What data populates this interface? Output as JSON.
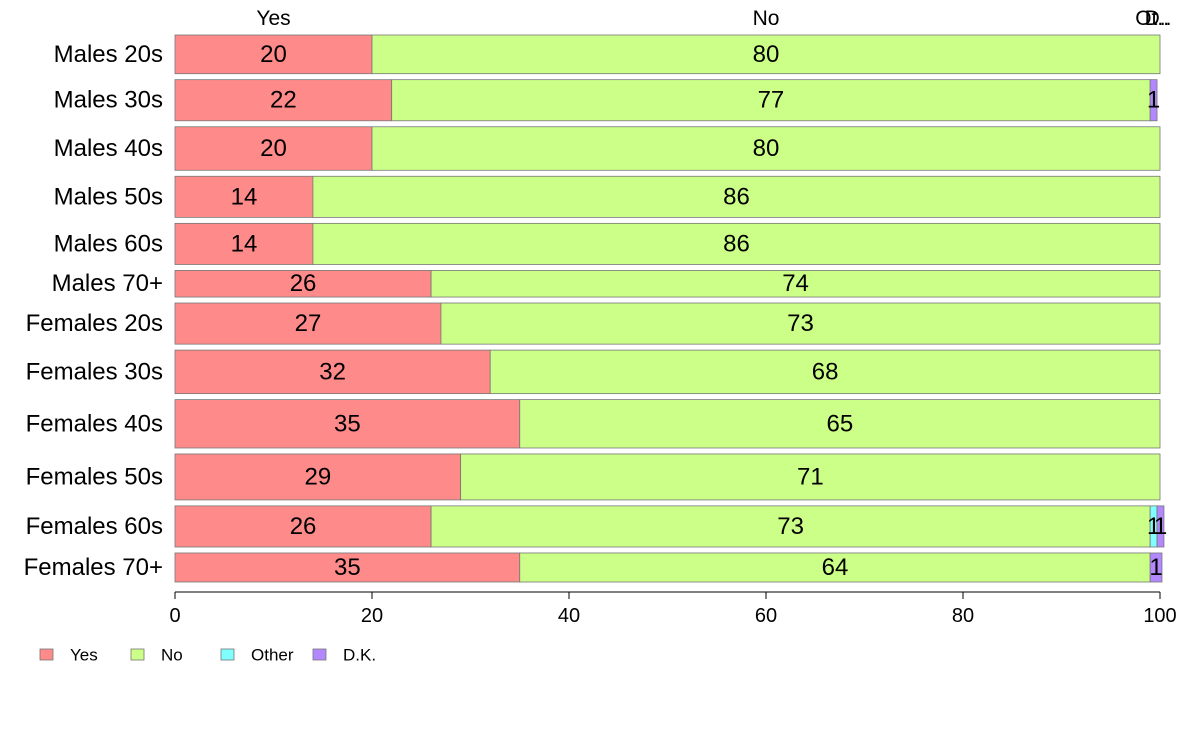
{
  "chart_data": {
    "type": "bar",
    "orientation": "horizontal",
    "stacked": true,
    "categories": [
      "Males 20s",
      "Males 30s",
      "Males 40s",
      "Males 50s",
      "Males 60s",
      "Males 70+",
      "Females 20s",
      "Females 30s",
      "Females 40s",
      "Females 50s",
      "Females 60s",
      "Females 70+"
    ],
    "bar_weights": [
      0.8,
      0.85,
      0.9,
      0.85,
      0.85,
      0.55,
      0.85,
      0.9,
      1.0,
      0.95,
      0.85,
      0.6
    ],
    "series": [
      {
        "name": "Yes",
        "color": "#ff8a8a",
        "values": [
          20,
          22,
          20,
          14,
          14,
          26,
          27,
          32,
          35,
          29,
          26,
          35
        ],
        "labels": [
          "20",
          "22",
          "20",
          "14",
          "14",
          "26",
          "27",
          "32",
          "35",
          "29",
          "26",
          "35"
        ]
      },
      {
        "name": "No",
        "color": "#ccff88",
        "values": [
          80,
          77,
          80,
          86,
          86,
          74,
          73,
          68,
          65,
          71,
          73,
          64
        ],
        "labels": [
          "80",
          "77",
          "80",
          "86",
          "86",
          "74",
          "73",
          "68",
          "65",
          "71",
          "73",
          "64"
        ]
      },
      {
        "name": "Other",
        "color": "#80ffff",
        "values": [
          0,
          0,
          0,
          0,
          0,
          0,
          0,
          0,
          0,
          0,
          0.7,
          0
        ],
        "labels": [
          "",
          "",
          "",
          "",
          "",
          "",
          "",
          "",
          "",
          "",
          "1",
          ""
        ]
      },
      {
        "name": "D.K.",
        "color": "#b388ff",
        "values": [
          0,
          0.7,
          0,
          0,
          0,
          0,
          0,
          0,
          0,
          0,
          0.7,
          1.2
        ],
        "labels": [
          "",
          "1",
          "",
          "",
          "",
          "",
          "",
          "",
          "",
          "",
          "1",
          "1"
        ]
      }
    ],
    "top_labels": [
      {
        "text": "Yes",
        "at": 10
      },
      {
        "text": "No",
        "at": 60
      },
      {
        "text": "Ot..",
        "at": 99.2
      },
      {
        "text": "D..",
        "at": 99.8
      }
    ],
    "xlim": [
      0,
      100
    ],
    "xticks": [
      0,
      20,
      40,
      60,
      80,
      100
    ],
    "xtick_labels": [
      "0",
      "20",
      "40",
      "60",
      "80",
      "100"
    ],
    "legend": {
      "position": "bottom-left",
      "items": [
        {
          "label": "Yes",
          "color": "#ff8a8a"
        },
        {
          "label": "No",
          "color": "#ccff88"
        },
        {
          "label": "Other",
          "color": "#80ffff"
        },
        {
          "label": "D.K.",
          "color": "#b388ff"
        }
      ]
    },
    "grid": false
  }
}
